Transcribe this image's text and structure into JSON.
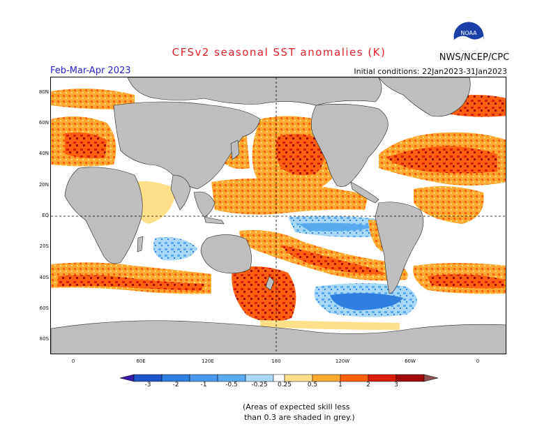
{
  "header": {
    "title": "CFSv2 seasonal SST anomalies (K)",
    "agency": "NWS/NCEP/CPC",
    "logo_text": "NOAA",
    "season": "Feb-Mar-Apr 2023",
    "initial_conditions": "Initial conditions: 22Jan2023-31Jan2023"
  },
  "axes": {
    "lat_labels": [
      "80N",
      "60N",
      "40N",
      "20N",
      "EQ",
      "20S",
      "40S",
      "60S",
      "80S"
    ],
    "lon_labels": [
      "0",
      "60E",
      "120E",
      "180",
      "120W",
      "60W",
      "0"
    ]
  },
  "colorbar": {
    "labels": [
      "-3",
      "-2",
      "-1",
      "-0.5",
      "-0.25",
      "0.25",
      "0.5",
      "1",
      "2",
      "3"
    ],
    "colors": [
      "#3a1aa8",
      "#1f55c8",
      "#2f7fe0",
      "#5aaaf0",
      "#a8d8f5",
      "#ffffff",
      "#ffe08a",
      "#ffa830",
      "#ff6010",
      "#d81e0a",
      "#a00a0a",
      "#8a5050"
    ]
  },
  "note": {
    "line1": "(Areas of expected skill less",
    "line2": "than 0.3 are shaded in grey.)"
  },
  "colors": {
    "land": "#bebebe",
    "title": "#e0202a",
    "season": "#2a22c8"
  }
}
